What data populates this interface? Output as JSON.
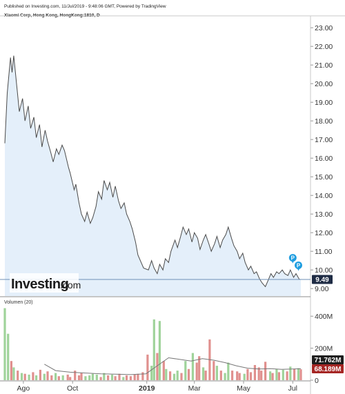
{
  "header": {
    "published": "Published on Investing.com, 11/Jul/2019 - 9:48:06 GMT, Powered by TradingView",
    "symbol": "Xiaomi Corp, Hong Kong, HongKong:1810, D"
  },
  "logo": {
    "name": "Investing",
    "suffix": ".com"
  },
  "volume_label": "Volumen (20)",
  "colors": {
    "line": "#4a4a4a",
    "area": "#e4effa",
    "up_volume": "#9fd39a",
    "down_volume": "#e0908e",
    "vol_ma": "#777777",
    "last_price_badge": "#1e2b44",
    "up_badge": "#1d1d1d",
    "down_badge": "#a52624",
    "marker": "#1e9de0"
  },
  "price_axis": {
    "ticks": [
      "23.00",
      "22.00",
      "21.00",
      "20.00",
      "19.00",
      "18.00",
      "17.00",
      "16.00",
      "15.00",
      "14.00",
      "13.00",
      "12.00",
      "11.00",
      "10.00",
      "9.00"
    ],
    "last_price": "9.49"
  },
  "volume_axis": {
    "ticks": [
      "400M",
      "200M",
      "0"
    ],
    "badge_ma": "71.762M",
    "badge_vol": "68.189M"
  },
  "x_axis": {
    "labels": [
      {
        "text": "Ago",
        "bold": false
      },
      {
        "text": "Oct",
        "bold": false
      },
      {
        "text": "2019",
        "bold": true
      },
      {
        "text": "Mar",
        "bold": false
      },
      {
        "text": "May",
        "bold": false
      },
      {
        "text": "Jul",
        "bold": false
      }
    ]
  },
  "markers": [
    {
      "label": "P"
    },
    {
      "label": "P"
    }
  ],
  "chart_data": {
    "type": "line",
    "title": "Xiaomi Corp, Hong Kong, HongKong:1810, D",
    "ylim": [
      8.6,
      23.6
    ],
    "x_range": [
      "2018-07-09",
      "2019-07-11"
    ],
    "price": [
      [
        "2018-07-09",
        16.8
      ],
      [
        "2018-07-12",
        19.5
      ],
      [
        "2018-07-16",
        21.4
      ],
      [
        "2018-07-18",
        20.6
      ],
      [
        "2018-07-20",
        21.5
      ],
      [
        "2018-07-24",
        19.8
      ],
      [
        "2018-07-27",
        18.5
      ],
      [
        "2018-07-31",
        19.2
      ],
      [
        "2018-08-03",
        18.0
      ],
      [
        "2018-08-07",
        18.8
      ],
      [
        "2018-08-10",
        17.6
      ],
      [
        "2018-08-14",
        18.2
      ],
      [
        "2018-08-17",
        17.1
      ],
      [
        "2018-08-21",
        17.8
      ],
      [
        "2018-08-24",
        16.6
      ],
      [
        "2018-08-28",
        17.5
      ],
      [
        "2018-08-31",
        16.9
      ],
      [
        "2018-09-04",
        16.3
      ],
      [
        "2018-09-07",
        15.8
      ],
      [
        "2018-09-11",
        16.5
      ],
      [
        "2018-09-14",
        16.2
      ],
      [
        "2018-09-18",
        16.7
      ],
      [
        "2018-09-21",
        16.4
      ],
      [
        "2018-09-26",
        15.5
      ],
      [
        "2018-09-28",
        15.2
      ],
      [
        "2018-10-03",
        14.3
      ],
      [
        "2018-10-05",
        14.6
      ],
      [
        "2018-10-09",
        13.6
      ],
      [
        "2018-10-12",
        13.0
      ],
      [
        "2018-10-16",
        12.6
      ],
      [
        "2018-10-19",
        13.1
      ],
      [
        "2018-10-23",
        12.5
      ],
      [
        "2018-10-26",
        12.8
      ],
      [
        "2018-10-30",
        13.4
      ],
      [
        "2018-11-02",
        14.2
      ],
      [
        "2018-11-06",
        13.8
      ],
      [
        "2018-11-09",
        14.8
      ],
      [
        "2018-11-13",
        14.3
      ],
      [
        "2018-11-16",
        14.7
      ],
      [
        "2018-11-20",
        13.9
      ],
      [
        "2018-11-23",
        14.5
      ],
      [
        "2018-11-27",
        13.7
      ],
      [
        "2018-11-30",
        13.3
      ],
      [
        "2018-12-04",
        13.6
      ],
      [
        "2018-12-07",
        13.0
      ],
      [
        "2018-12-11",
        12.6
      ],
      [
        "2018-12-14",
        12.2
      ],
      [
        "2018-12-18",
        11.5
      ],
      [
        "2018-12-21",
        10.8
      ],
      [
        "2018-12-28",
        10.1
      ],
      [
        "2019-01-03",
        10.0
      ],
      [
        "2019-01-07",
        10.5
      ],
      [
        "2019-01-10",
        10.1
      ],
      [
        "2019-01-14",
        9.8
      ],
      [
        "2019-01-17",
        10.3
      ],
      [
        "2019-01-21",
        10.0
      ],
      [
        "2019-01-24",
        10.6
      ],
      [
        "2019-01-28",
        10.4
      ],
      [
        "2019-01-31",
        11.0
      ],
      [
        "2019-02-05",
        11.6
      ],
      [
        "2019-02-08",
        11.2
      ],
      [
        "2019-02-12",
        11.8
      ],
      [
        "2019-02-15",
        12.3
      ],
      [
        "2019-02-19",
        11.9
      ],
      [
        "2019-02-22",
        12.2
      ],
      [
        "2019-02-26",
        11.5
      ],
      [
        "2019-03-01",
        12.0
      ],
      [
        "2019-03-05",
        11.7
      ],
      [
        "2019-03-08",
        11.1
      ],
      [
        "2019-03-12",
        11.6
      ],
      [
        "2019-03-15",
        11.9
      ],
      [
        "2019-03-19",
        11.4
      ],
      [
        "2019-03-22",
        11.0
      ],
      [
        "2019-03-26",
        11.4
      ],
      [
        "2019-03-29",
        11.8
      ],
      [
        "2019-04-02",
        11.2
      ],
      [
        "2019-04-05",
        11.6
      ],
      [
        "2019-04-09",
        11.9
      ],
      [
        "2019-04-12",
        12.3
      ],
      [
        "2019-04-16",
        11.7
      ],
      [
        "2019-04-19",
        11.3
      ],
      [
        "2019-04-23",
        11.0
      ],
      [
        "2019-04-26",
        10.6
      ],
      [
        "2019-04-30",
        10.9
      ],
      [
        "2019-05-03",
        10.4
      ],
      [
        "2019-05-07",
        10.0
      ],
      [
        "2019-05-10",
        10.2
      ],
      [
        "2019-05-14",
        9.8
      ],
      [
        "2019-05-17",
        9.9
      ],
      [
        "2019-05-21",
        9.5
      ],
      [
        "2019-05-24",
        9.3
      ],
      [
        "2019-05-28",
        9.1
      ],
      [
        "2019-05-31",
        9.4
      ],
      [
        "2019-06-04",
        9.8
      ],
      [
        "2019-06-07",
        9.6
      ],
      [
        "2019-06-11",
        9.9
      ],
      [
        "2019-06-14",
        9.8
      ],
      [
        "2019-06-18",
        10.0
      ],
      [
        "2019-06-21",
        9.8
      ],
      [
        "2019-06-25",
        9.7
      ],
      [
        "2019-06-28",
        10.0
      ],
      [
        "2019-07-02",
        9.6
      ],
      [
        "2019-07-05",
        9.8
      ],
      [
        "2019-07-09",
        9.5
      ],
      [
        "2019-07-11",
        9.49
      ]
    ],
    "volume_ylim": [
      0,
      470
    ],
    "volume_unit": "M",
    "volume": [
      [
        "2018-07-09",
        450,
        "up"
      ],
      [
        "2018-07-13",
        290,
        "up"
      ],
      [
        "2018-07-17",
        120,
        "down"
      ],
      [
        "2018-07-20",
        80,
        "up"
      ],
      [
        "2018-07-25",
        60,
        "down"
      ],
      [
        "2018-07-30",
        45,
        "up"
      ],
      [
        "2018-08-03",
        40,
        "down"
      ],
      [
        "2018-08-08",
        35,
        "up"
      ],
      [
        "2018-08-13",
        50,
        "down"
      ],
      [
        "2018-08-17",
        30,
        "up"
      ],
      [
        "2018-08-22",
        65,
        "down"
      ],
      [
        "2018-08-27",
        40,
        "up"
      ],
      [
        "2018-08-31",
        55,
        "down"
      ],
      [
        "2018-09-05",
        30,
        "down"
      ],
      [
        "2018-09-10",
        45,
        "up"
      ],
      [
        "2018-09-14",
        25,
        "down"
      ],
      [
        "2018-09-19",
        30,
        "up"
      ],
      [
        "2018-09-25",
        35,
        "down"
      ],
      [
        "2018-09-28",
        20,
        "down"
      ],
      [
        "2018-10-04",
        60,
        "down"
      ],
      [
        "2018-10-09",
        30,
        "down"
      ],
      [
        "2018-10-12",
        45,
        "down"
      ],
      [
        "2018-10-17",
        25,
        "up"
      ],
      [
        "2018-10-22",
        30,
        "up"
      ],
      [
        "2018-10-26",
        40,
        "up"
      ],
      [
        "2018-10-31",
        35,
        "up"
      ],
      [
        "2018-11-05",
        20,
        "down"
      ],
      [
        "2018-11-09",
        45,
        "up"
      ],
      [
        "2018-11-14",
        30,
        "down"
      ],
      [
        "2018-11-19",
        35,
        "up"
      ],
      [
        "2018-11-23",
        25,
        "down"
      ],
      [
        "2018-11-28",
        40,
        "down"
      ],
      [
        "2018-12-03",
        20,
        "up"
      ],
      [
        "2018-12-07",
        30,
        "down"
      ],
      [
        "2018-12-12",
        25,
        "down"
      ],
      [
        "2018-12-17",
        35,
        "down"
      ],
      [
        "2018-12-21",
        40,
        "down"
      ],
      [
        "2018-12-27",
        50,
        "down"
      ],
      [
        "2019-01-02",
        160,
        "down"
      ],
      [
        "2019-01-07",
        90,
        "up"
      ],
      [
        "2019-01-10",
        380,
        "up"
      ],
      [
        "2019-01-14",
        170,
        "down"
      ],
      [
        "2019-01-17",
        370,
        "up"
      ],
      [
        "2019-01-22",
        120,
        "down"
      ],
      [
        "2019-01-25",
        70,
        "up"
      ],
      [
        "2019-01-30",
        55,
        "down"
      ],
      [
        "2019-02-04",
        40,
        "up"
      ],
      [
        "2019-02-08",
        60,
        "up"
      ],
      [
        "2019-02-13",
        45,
        "down"
      ],
      [
        "2019-02-18",
        120,
        "up"
      ],
      [
        "2019-02-22",
        70,
        "down"
      ],
      [
        "2019-02-27",
        170,
        "up"
      ],
      [
        "2019-03-04",
        110,
        "down"
      ],
      [
        "2019-03-07",
        150,
        "down"
      ],
      [
        "2019-03-12",
        80,
        "up"
      ],
      [
        "2019-03-15",
        60,
        "down"
      ],
      [
        "2019-03-20",
        255,
        "down"
      ],
      [
        "2019-03-25",
        120,
        "down"
      ],
      [
        "2019-03-29",
        90,
        "up"
      ],
      [
        "2019-04-03",
        60,
        "down"
      ],
      [
        "2019-04-08",
        45,
        "up"
      ],
      [
        "2019-04-12",
        110,
        "up"
      ],
      [
        "2019-04-17",
        60,
        "down"
      ],
      [
        "2019-04-23",
        55,
        "down"
      ],
      [
        "2019-04-26",
        45,
        "down"
      ],
      [
        "2019-05-02",
        40,
        "up"
      ],
      [
        "2019-05-06",
        70,
        "down"
      ],
      [
        "2019-05-10",
        50,
        "down"
      ],
      [
        "2019-05-15",
        95,
        "down"
      ],
      [
        "2019-05-20",
        80,
        "down"
      ],
      [
        "2019-05-23",
        60,
        "down"
      ],
      [
        "2019-05-28",
        115,
        "down"
      ],
      [
        "2019-06-03",
        55,
        "up"
      ],
      [
        "2019-06-06",
        45,
        "down"
      ],
      [
        "2019-06-11",
        70,
        "up"
      ],
      [
        "2019-06-14",
        50,
        "down"
      ],
      [
        "2019-06-19",
        65,
        "up"
      ],
      [
        "2019-06-24",
        55,
        "down"
      ],
      [
        "2019-06-28",
        85,
        "up"
      ],
      [
        "2019-07-03",
        70,
        "down"
      ],
      [
        "2019-07-08",
        75,
        "up"
      ],
      [
        "2019-07-11",
        68,
        "down"
      ]
    ],
    "volume_ma": [
      [
        "2018-08-27",
        100
      ],
      [
        "2018-09-10",
        60
      ],
      [
        "2018-09-28",
        50
      ],
      [
        "2018-10-17",
        45
      ],
      [
        "2018-11-05",
        40
      ],
      [
        "2018-11-23",
        38
      ],
      [
        "2018-12-12",
        35
      ],
      [
        "2018-12-31",
        40
      ],
      [
        "2019-01-14",
        90
      ],
      [
        "2019-01-28",
        140
      ],
      [
        "2019-02-11",
        130
      ],
      [
        "2019-02-25",
        120
      ],
      [
        "2019-03-11",
        135
      ],
      [
        "2019-03-25",
        125
      ],
      [
        "2019-04-08",
        110
      ],
      [
        "2019-04-22",
        90
      ],
      [
        "2019-05-06",
        75
      ],
      [
        "2019-05-20",
        70
      ],
      [
        "2019-06-03",
        72
      ],
      [
        "2019-06-17",
        68
      ],
      [
        "2019-07-01",
        70
      ],
      [
        "2019-07-11",
        71.762
      ]
    ]
  }
}
